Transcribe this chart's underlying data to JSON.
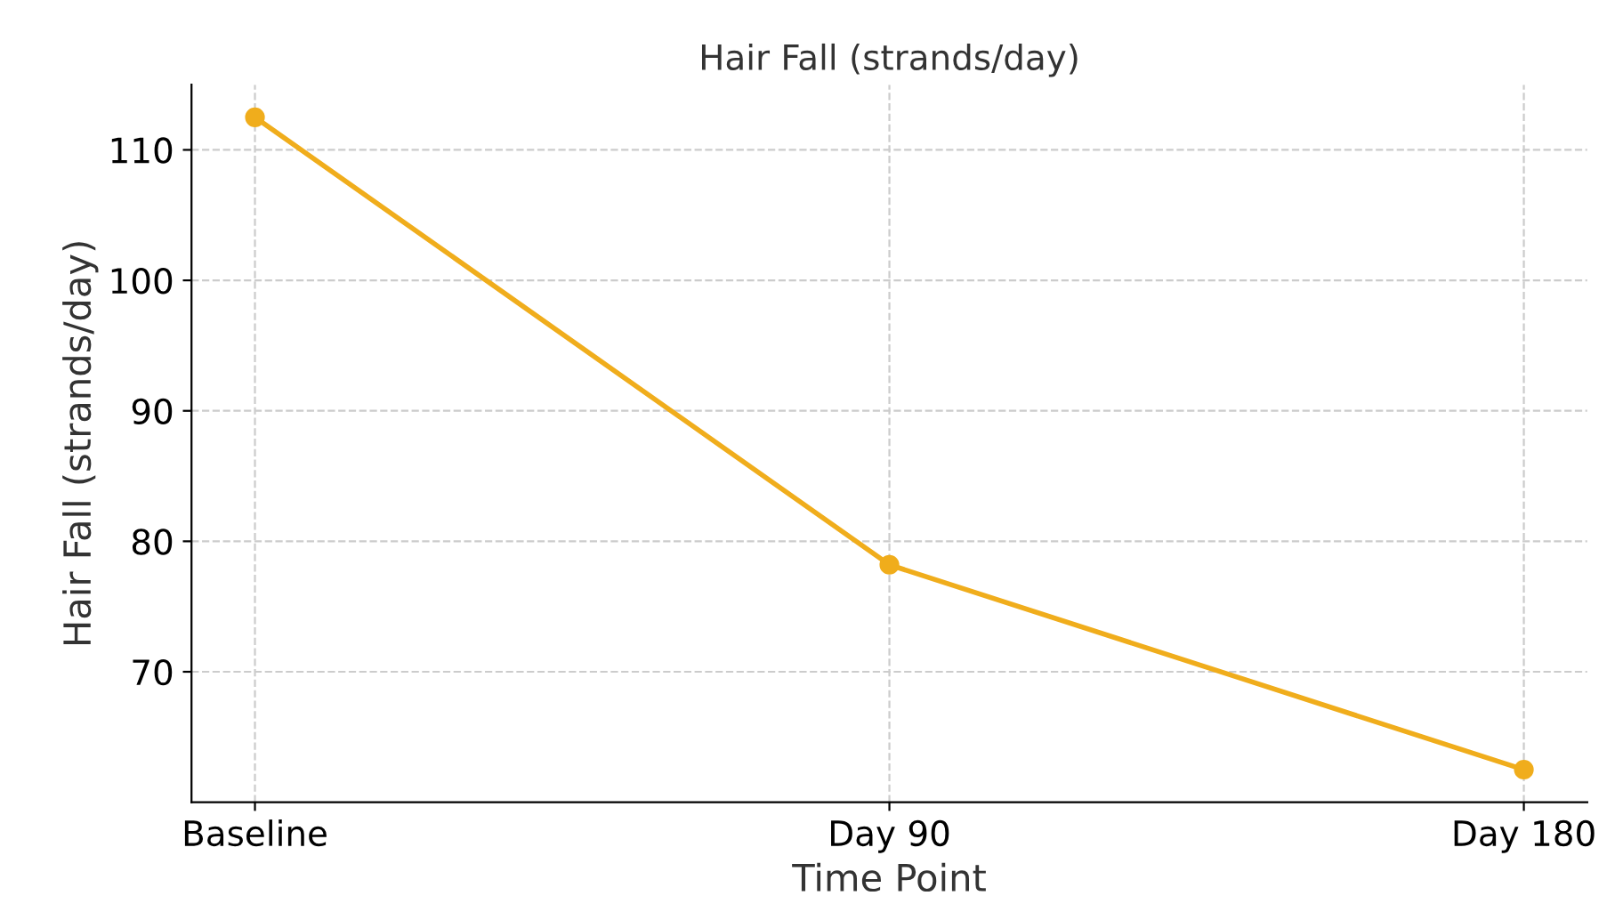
{
  "chart_data": {
    "type": "line",
    "title": "Hair Fall (strands/day)",
    "xlabel": "Time Point",
    "ylabel": "Hair Fall (strands/day)",
    "categories": [
      "Baseline",
      "Day 90",
      "Day 180"
    ],
    "series": [
      {
        "color": "#f0ad1c",
        "values": [
          112.5,
          78.2,
          62.5
        ]
      }
    ],
    "ylim": [
      60,
      115
    ],
    "yticks": [
      70,
      80,
      90,
      100,
      110
    ],
    "grid": true,
    "marker": "circle",
    "line_style": "solid"
  }
}
